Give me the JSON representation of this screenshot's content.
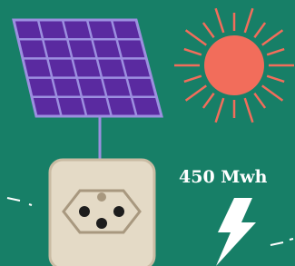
{
  "energy_label": {
    "text": "450 Mwh"
  }
}
